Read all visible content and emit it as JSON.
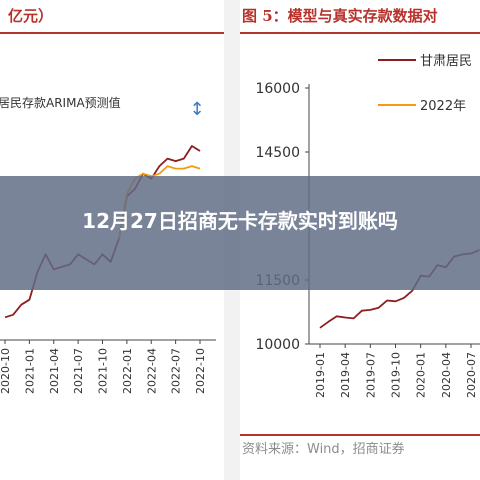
{
  "article": {
    "headline": "12月27日招商无卡存款实时到账吗"
  },
  "left_chart": {
    "title_text": "亿元）",
    "title": "（四川，单位：亿元）",
    "source": "",
    "chart_data": {
      "type": "line",
      "title": "（四川，单位：亿元）",
      "x_ticks": [
        "2020-10",
        "2021-01",
        "2021-04",
        "2021-07",
        "2021-10",
        "2022-01",
        "2022-04",
        "2022-07",
        "2022-10"
      ],
      "series": [
        {
          "name": "",
          "color": "#8b1e1e",
          "x": [
            "2020-10",
            "2020-11",
            "2020-12",
            "2021-01",
            "2021-02",
            "2021-03",
            "2021-04",
            "2021-05",
            "2021-06",
            "2021-07",
            "2021-08",
            "2021-09",
            "2021-10",
            "2021-11",
            "2021-12",
            "2022-01",
            "2022-02",
            "2022-03",
            "2022-04",
            "2022-05",
            "2022-06",
            "2022-07",
            "2022-08",
            "2022-09",
            "2022-10"
          ],
          "values": [
            9,
            10,
            14,
            16,
            27,
            34,
            28,
            29,
            30,
            34,
            32,
            30,
            34,
            31,
            40,
            57,
            60,
            66,
            64,
            69,
            72,
            71,
            72,
            77,
            75
          ]
        },
        {
          "name": "居民存款ARIMA预测值",
          "color": "#f39c12",
          "x": [
            "2021-12",
            "2022-01",
            "2022-02",
            "2022-03",
            "2022-04",
            "2022-05",
            "2022-06",
            "2022-07",
            "2022-08",
            "2022-09",
            "2022-10"
          ],
          "values": [
            40,
            58,
            64,
            66,
            65,
            66,
            69,
            68,
            68,
            69,
            68
          ]
        }
      ],
      "annotation": "↕"
    }
  },
  "right_chart": {
    "title": "图 5：模型与真实存款数据对",
    "source": "资料来源：Wind，招商证券",
    "chart_data": {
      "type": "line",
      "title": "图 5：模型与真实存款数据对",
      "ylim": [
        10000,
        16000
      ],
      "y_ticks": [
        "16000",
        "14500",
        "11500",
        "10000"
      ],
      "x_ticks": [
        "2019-01",
        "2019-04",
        "2019-07",
        "2019-10",
        "2020-01",
        "2020-04",
        "2020-07"
      ],
      "series": [
        {
          "name": "甘肃居民",
          "color": "#8b1e1e",
          "x": [
            "2019-01",
            "2019-02",
            "2019-03",
            "2019-04",
            "2019-05",
            "2019-06",
            "2019-07",
            "2019-08",
            "2019-09",
            "2019-10",
            "2019-11",
            "2019-12",
            "2020-01",
            "2020-02",
            "2020-03",
            "2020-04",
            "2020-05",
            "2020-06",
            "2020-07",
            "2020-08"
          ],
          "values": [
            10380,
            10520,
            10650,
            10620,
            10600,
            10780,
            10800,
            10850,
            11020,
            11000,
            11080,
            11250,
            11600,
            11580,
            11850,
            11800,
            12050,
            12100,
            12120,
            12200
          ]
        },
        {
          "name": "2022年",
          "color": "#f39c12",
          "x": [],
          "values": []
        }
      ]
    }
  }
}
